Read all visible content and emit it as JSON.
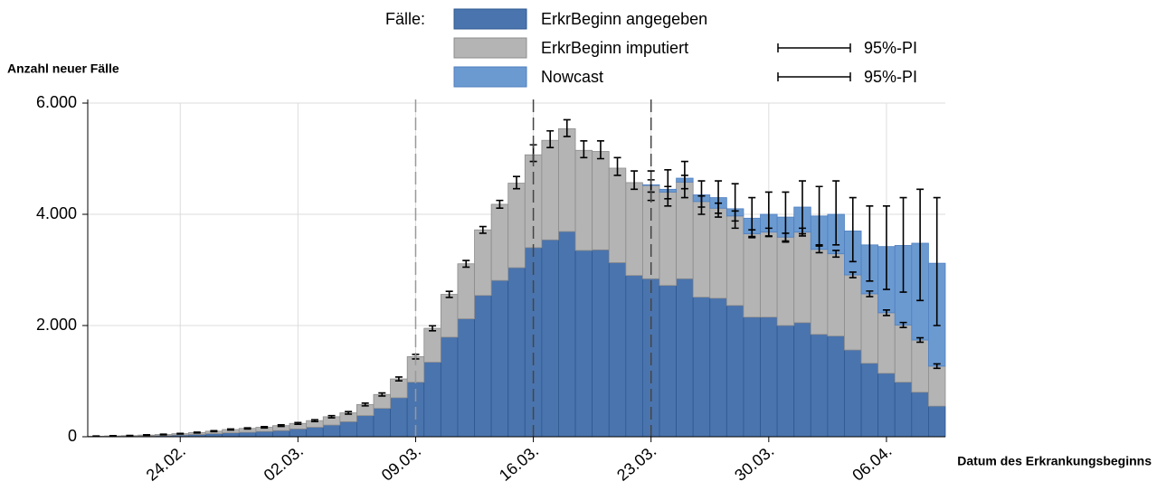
{
  "chart_data": {
    "type": "stacked_bar",
    "legend_title": "Fälle:",
    "y_label": "Anzahl neuer Fälle",
    "x_label": "Datum des Erkrankungsbeginns",
    "ylim": [
      0,
      6000
    ],
    "yticks": [
      0,
      {
        "value": 2000,
        "label": "2.000"
      },
      {
        "value": 4000,
        "label": "4.000"
      },
      {
        "value": 6000,
        "label": "6.000"
      }
    ],
    "grid": true,
    "categories": [
      null,
      null,
      null,
      null,
      null,
      "24.02.",
      null,
      null,
      null,
      null,
      null,
      null,
      "02.03.",
      null,
      null,
      null,
      null,
      null,
      null,
      "09.03.",
      null,
      null,
      null,
      null,
      null,
      null,
      "16.03.",
      null,
      null,
      null,
      null,
      null,
      null,
      "23.03.",
      null,
      null,
      null,
      null,
      null,
      null,
      "30.03.",
      null,
      null,
      null,
      null,
      null,
      null,
      "06.04.",
      null,
      null,
      null
    ],
    "dashed_at": [
      "09.03.",
      "16.03.",
      "23.03."
    ],
    "series": [
      {
        "name": "ErkrBeginn angegeben",
        "color": "#4a74ae",
        "stroke": "#2e5890",
        "values": [
          5,
          8,
          10,
          15,
          20,
          30,
          40,
          55,
          70,
          80,
          95,
          110,
          140,
          170,
          210,
          270,
          380,
          510,
          700,
          980,
          1340,
          1790,
          2120,
          2540,
          2810,
          3040,
          3400,
          3540,
          3690,
          3350,
          3360,
          3130,
          2900,
          2840,
          2720,
          2840,
          2510,
          2490,
          2360,
          2150,
          2150,
          2000,
          2050,
          1840,
          1810,
          1560,
          1320,
          1140,
          980,
          800,
          550
        ]
      },
      {
        "name": "ErkrBeginn imputiert",
        "color": "#b4b4b4",
        "stroke": "#8c8c8c",
        "pi_label": "95%-PI",
        "values": [
          5,
          7,
          10,
          15,
          20,
          25,
          35,
          45,
          60,
          70,
          75,
          90,
          100,
          120,
          150,
          160,
          200,
          250,
          340,
          460,
          610,
          770,
          990,
          1180,
          1370,
          1520,
          1670,
          1790,
          1850,
          1800,
          1770,
          1700,
          1670,
          1680,
          1680,
          1740,
          1720,
          1620,
          1610,
          1500,
          1530,
          1590,
          1630,
          1530,
          1480,
          1350,
          1250,
          1090,
          1030,
          940,
          720
        ],
        "pi_low": [
          7,
          11,
          16,
          25,
          35,
          49,
          68,
          92,
          120,
          140,
          158,
          186,
          225,
          273,
          340,
          408,
          555,
          732,
          1005,
          1400,
          1905,
          2505,
          3050,
          3660,
          4110,
          4460,
          4950,
          5200,
          5400,
          5020,
          5000,
          4700,
          4450,
          4400,
          4280,
          4460,
          4130,
          4020,
          3880,
          3580,
          3610,
          3520,
          3610,
          3310,
          3230,
          2860,
          2520,
          2180,
          1965,
          1700,
          1230
        ],
        "pi_high": [
          13,
          19,
          24,
          35,
          45,
          61,
          82,
          108,
          140,
          160,
          182,
          214,
          255,
          307,
          380,
          452,
          605,
          788,
          1075,
          1480,
          1995,
          2615,
          3170,
          3780,
          4250,
          4680,
          5250,
          5500,
          5700,
          5320,
          5320,
          5020,
          4780,
          4620,
          4500,
          4700,
          4330,
          4200,
          4060,
          3720,
          3750,
          3660,
          3750,
          3430,
          3350,
          2960,
          2620,
          2280,
          2055,
          1780,
          1310
        ]
      },
      {
        "name": "Nowcast",
        "color": "#6b9ad1",
        "stroke": "#4f7fbf",
        "pi_label": "95%-PI",
        "values": [
          null,
          null,
          null,
          null,
          null,
          null,
          null,
          null,
          null,
          null,
          null,
          null,
          null,
          null,
          null,
          null,
          null,
          null,
          null,
          null,
          null,
          null,
          null,
          null,
          null,
          null,
          null,
          null,
          null,
          null,
          null,
          null,
          null,
          10,
          50,
          70,
          120,
          190,
          130,
          280,
          320,
          360,
          450,
          600,
          710,
          790,
          880,
          1190,
          1430,
          1740,
          1850
        ],
        "pi_low": [
          null,
          null,
          null,
          null,
          null,
          null,
          null,
          null,
          null,
          null,
          null,
          null,
          null,
          null,
          null,
          null,
          null,
          null,
          null,
          null,
          null,
          null,
          null,
          null,
          null,
          null,
          null,
          null,
          null,
          null,
          null,
          null,
          null,
          4250,
          4150,
          4300,
          4000,
          3950,
          3750,
          3600,
          3600,
          3500,
          3650,
          3450,
          3450,
          3150,
          2800,
          2650,
          2600,
          2450,
          2000
        ],
        "pi_high": [
          null,
          null,
          null,
          null,
          null,
          null,
          null,
          null,
          null,
          null,
          null,
          null,
          null,
          null,
          null,
          null,
          null,
          null,
          null,
          null,
          null,
          null,
          null,
          null,
          null,
          null,
          null,
          null,
          null,
          null,
          null,
          null,
          null,
          4780,
          4800,
          4950,
          4600,
          4600,
          4550,
          4300,
          4400,
          4400,
          4600,
          4500,
          4600,
          4300,
          4150,
          4150,
          4300,
          4450,
          4300
        ]
      }
    ]
  }
}
